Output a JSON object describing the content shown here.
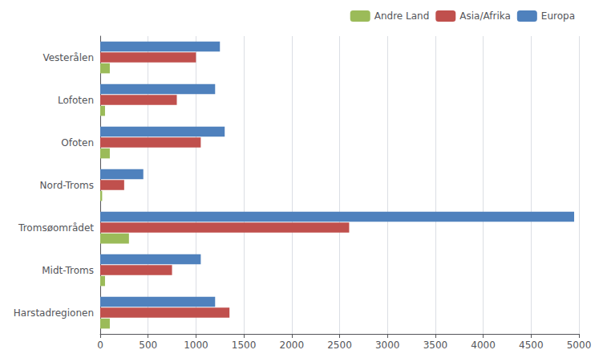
{
  "chart_data": {
    "type": "bar",
    "orientation": "horizontal",
    "categories": [
      "Harstadregionen",
      "Midt-Troms",
      "Tromsøområdet",
      "Nord-Troms",
      "Ofoten",
      "Lofoten",
      "Vesterålen"
    ],
    "series": [
      {
        "name": "Europa",
        "color": "#4f81bd",
        "values": [
          1200,
          1050,
          4950,
          450,
          1300,
          1200,
          1250
        ]
      },
      {
        "name": "Asia/Afrika",
        "color": "#c0504d",
        "values": [
          1350,
          750,
          2600,
          250,
          1050,
          800,
          1000
        ]
      },
      {
        "name": "Andre Land",
        "color": "#9bbb59",
        "values": [
          100,
          50,
          300,
          20,
          100,
          50,
          100
        ]
      }
    ],
    "xlim": [
      0,
      5000
    ],
    "xticks": [
      0,
      500,
      1000,
      1500,
      2000,
      2500,
      3000,
      3500,
      4000,
      4500,
      5000
    ],
    "grid": true,
    "legend": "upper right"
  }
}
